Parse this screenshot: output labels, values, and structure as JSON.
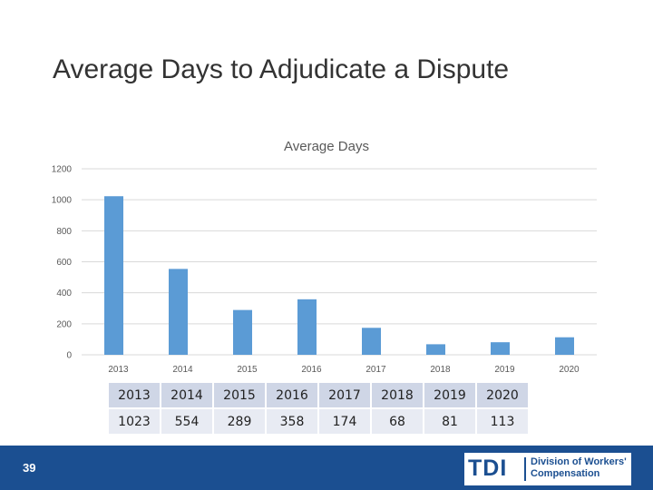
{
  "slide": {
    "title": "Average Days to Adjudicate a Dispute",
    "page_number": "39"
  },
  "logo": {
    "text": "TDI",
    "division_line1": "Division of Workers'",
    "division_line2": "Compensation"
  },
  "colors": {
    "bar": "#5b9bd5",
    "footer": "#1b4f91",
    "grid": "#d9d9d9"
  },
  "chart_data": {
    "type": "bar",
    "title": "Average Days",
    "categories": [
      "2013",
      "2014",
      "2015",
      "2016",
      "2017",
      "2018",
      "2019",
      "2020"
    ],
    "values": [
      1023,
      554,
      289,
      358,
      174,
      68,
      81,
      113
    ],
    "y_ticks": [
      "0",
      "200",
      "400",
      "600",
      "800",
      "1000",
      "1200"
    ],
    "ylim": [
      0,
      1200
    ],
    "xlabel": "",
    "ylabel": "",
    "grid": true,
    "legend": "none"
  },
  "table": {
    "years": [
      "2013",
      "2014",
      "2015",
      "2016",
      "2017",
      "2018",
      "2019",
      "2020"
    ],
    "values": [
      "1023",
      "554",
      "289",
      "358",
      "174",
      "68",
      "81",
      "113"
    ]
  }
}
